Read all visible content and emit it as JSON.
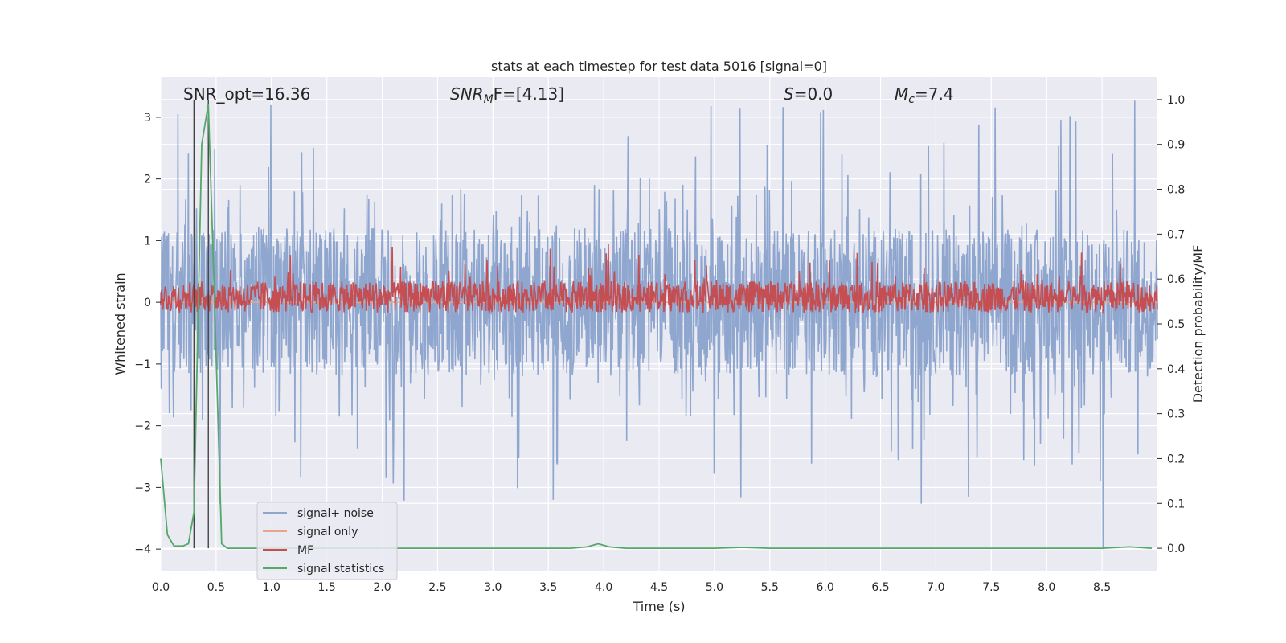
{
  "chart_data": {
    "type": "line",
    "title": "stats at each timestep for test data 5016 [signal=0]",
    "xlabel": "Time (s)",
    "ylabel": "Whitened strain",
    "y2label": "Detection probability/MF",
    "xlim": [
      0.0,
      9.0
    ],
    "ylim": [
      -4.35,
      3.65
    ],
    "y2lim": [
      -0.05,
      1.05
    ],
    "x_ticks": [
      "0.0",
      "0.5",
      "1.0",
      "1.5",
      "2.0",
      "2.5",
      "3.0",
      "3.5",
      "4.0",
      "4.5",
      "5.0",
      "5.5",
      "6.0",
      "6.5",
      "7.0",
      "7.5",
      "8.0",
      "8.5"
    ],
    "y_ticks": [
      "3",
      "2",
      "1",
      "0",
      "−1",
      "−2",
      "−3",
      "−4"
    ],
    "y2_ticks": [
      "1.0",
      "0.9",
      "0.8",
      "0.7",
      "0.6",
      "0.5",
      "0.4",
      "0.3",
      "0.2",
      "0.1",
      "0.0"
    ],
    "grid": true,
    "legend_position": "lower-left",
    "annotations": {
      "snr_opt": "SNR_opt=16.36",
      "snr_mf_prefix": "SNR",
      "snr_mf_sub": "M",
      "snr_mf_suffix": "F=[4.13]",
      "s_label": "S",
      "s_value": "=0.0",
      "mc_label": "M",
      "mc_sub": "c",
      "mc_value": "=7.4"
    },
    "vertical_lines_x": [
      0.3,
      0.43
    ],
    "series": [
      {
        "name": "signal+ noise",
        "color": "#8fa6cf",
        "axis": "left",
        "amplitude_typical": 1.2,
        "peak_max": 3.3,
        "peak_min": -4.0
      },
      {
        "name": "signal only",
        "color": "#e8a58c",
        "axis": "left",
        "values_constant": 0.0
      },
      {
        "name": "MF",
        "color": "#c44e52",
        "axis": "right",
        "baseline": 0.56,
        "peak_max": 0.68
      },
      {
        "name": "signal statistics",
        "color": "#55a868",
        "axis": "right",
        "x": [
          0.0,
          0.06,
          0.12,
          0.2,
          0.25,
          0.3,
          0.37,
          0.43,
          0.48,
          0.55,
          0.6,
          1.0,
          2.0,
          3.0,
          3.7,
          3.85,
          3.95,
          4.05,
          4.2,
          5.0,
          5.25,
          5.5,
          6.0,
          7.0,
          8.0,
          8.5,
          8.75,
          8.95
        ],
        "values": [
          0.2,
          0.03,
          0.005,
          0.005,
          0.01,
          0.08,
          0.9,
          0.99,
          0.6,
          0.01,
          0.0,
          0.0,
          0.0,
          0.0,
          0.0,
          0.003,
          0.01,
          0.003,
          0.0,
          0.0,
          0.002,
          0.0,
          0.0,
          0.0,
          0.0,
          0.0,
          0.003,
          0.0
        ]
      }
    ]
  }
}
